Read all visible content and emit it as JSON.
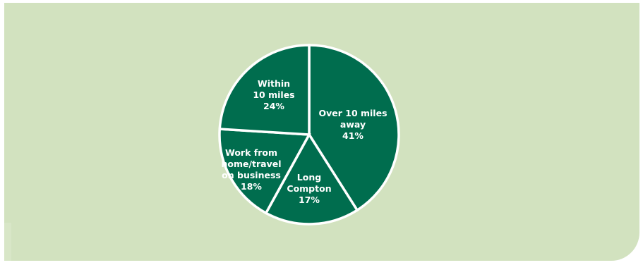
{
  "colors": {
    "background": "#d2e2bf",
    "slice_fill": "#006d4e",
    "slice_stroke": "#ffffff",
    "text": "#ffffff"
  },
  "chart_data": {
    "type": "pie",
    "title": "",
    "slices": [
      {
        "name": "over-10-miles",
        "label_lines": [
          "Over 10 miles",
          "away",
          "41%"
        ],
        "value": 41
      },
      {
        "name": "long-compton",
        "label_lines": [
          "Long",
          "Compton",
          "17%"
        ],
        "value": 17
      },
      {
        "name": "work-from-home",
        "label_lines": [
          "Work from",
          "home/travel",
          "on business",
          "18%"
        ],
        "value": 18
      },
      {
        "name": "within-10-miles",
        "label_lines": [
          "Within",
          "10 miles",
          "24%"
        ],
        "value": 24
      }
    ],
    "start": "12 o'clock",
    "direction": "clockwise",
    "legend": "none"
  }
}
